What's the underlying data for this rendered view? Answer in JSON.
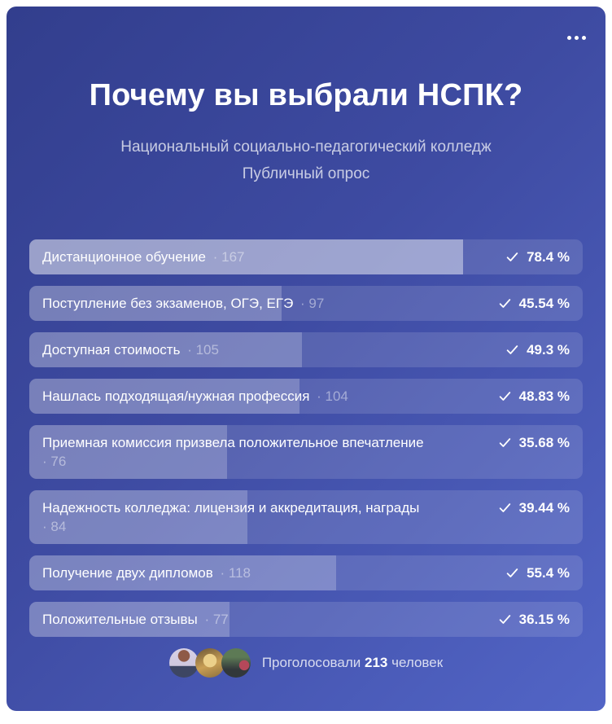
{
  "poll": {
    "title": "Почему вы выбрали НСПК?",
    "author": "Национальный социально-педагогический колледж",
    "type_label": "Публичный опрос",
    "check_icon_name": "check-icon",
    "options": [
      {
        "label": "Дистанционное обучение",
        "votes": 167,
        "votes_label": "· 167",
        "percent": 78.4,
        "percent_label": "78.4 %",
        "highlight": true,
        "two_line": false
      },
      {
        "label": "Поступление без экзаменов, ОГЭ, ЕГЭ",
        "votes": 97,
        "votes_label": "· 97",
        "percent": 45.54,
        "percent_label": "45.54 %",
        "highlight": false,
        "two_line": false
      },
      {
        "label": "Доступная стоимость",
        "votes": 105,
        "votes_label": "· 105",
        "percent": 49.3,
        "percent_label": "49.3 %",
        "highlight": false,
        "two_line": false
      },
      {
        "label": "Нашлась подходящая/нужная профессия",
        "votes": 104,
        "votes_label": "· 104",
        "percent": 48.83,
        "percent_label": "48.83 %",
        "highlight": false,
        "two_line": false
      },
      {
        "label": "Приемная комиссия призвела положительное впечатление",
        "votes": 76,
        "votes_label": "· 76",
        "percent": 35.68,
        "percent_label": "35.68 %",
        "highlight": false,
        "two_line": true
      },
      {
        "label": "Надежность колледжа: лицензия и аккредитация, награды",
        "votes": 84,
        "votes_label": "· 84",
        "percent": 39.44,
        "percent_label": "39.44 %",
        "highlight": false,
        "two_line": true
      },
      {
        "label": "Получение двух дипломов",
        "votes": 118,
        "votes_label": "· 118",
        "percent": 55.4,
        "percent_label": "55.4 %",
        "highlight": false,
        "two_line": false
      },
      {
        "label": "Положительные отзывы",
        "votes": 77,
        "votes_label": "· 77",
        "percent": 36.15,
        "percent_label": "36.15 %",
        "highlight": false,
        "two_line": false
      }
    ],
    "footer": {
      "voted_text": "Проголосовали",
      "voters_count": "213",
      "people_text": "человек"
    },
    "colors": {
      "card_gradient_start": "#323e8d",
      "card_gradient_end": "#5265c6",
      "row_base": "rgba(255,255,255,0.13)",
      "row_fill": "rgba(255,255,255,0.21)",
      "row_fill_winner": "rgba(255,255,255,0.42)",
      "text_primary": "#ffffff",
      "text_muted": "rgba(255,255,255,0.72)"
    }
  }
}
